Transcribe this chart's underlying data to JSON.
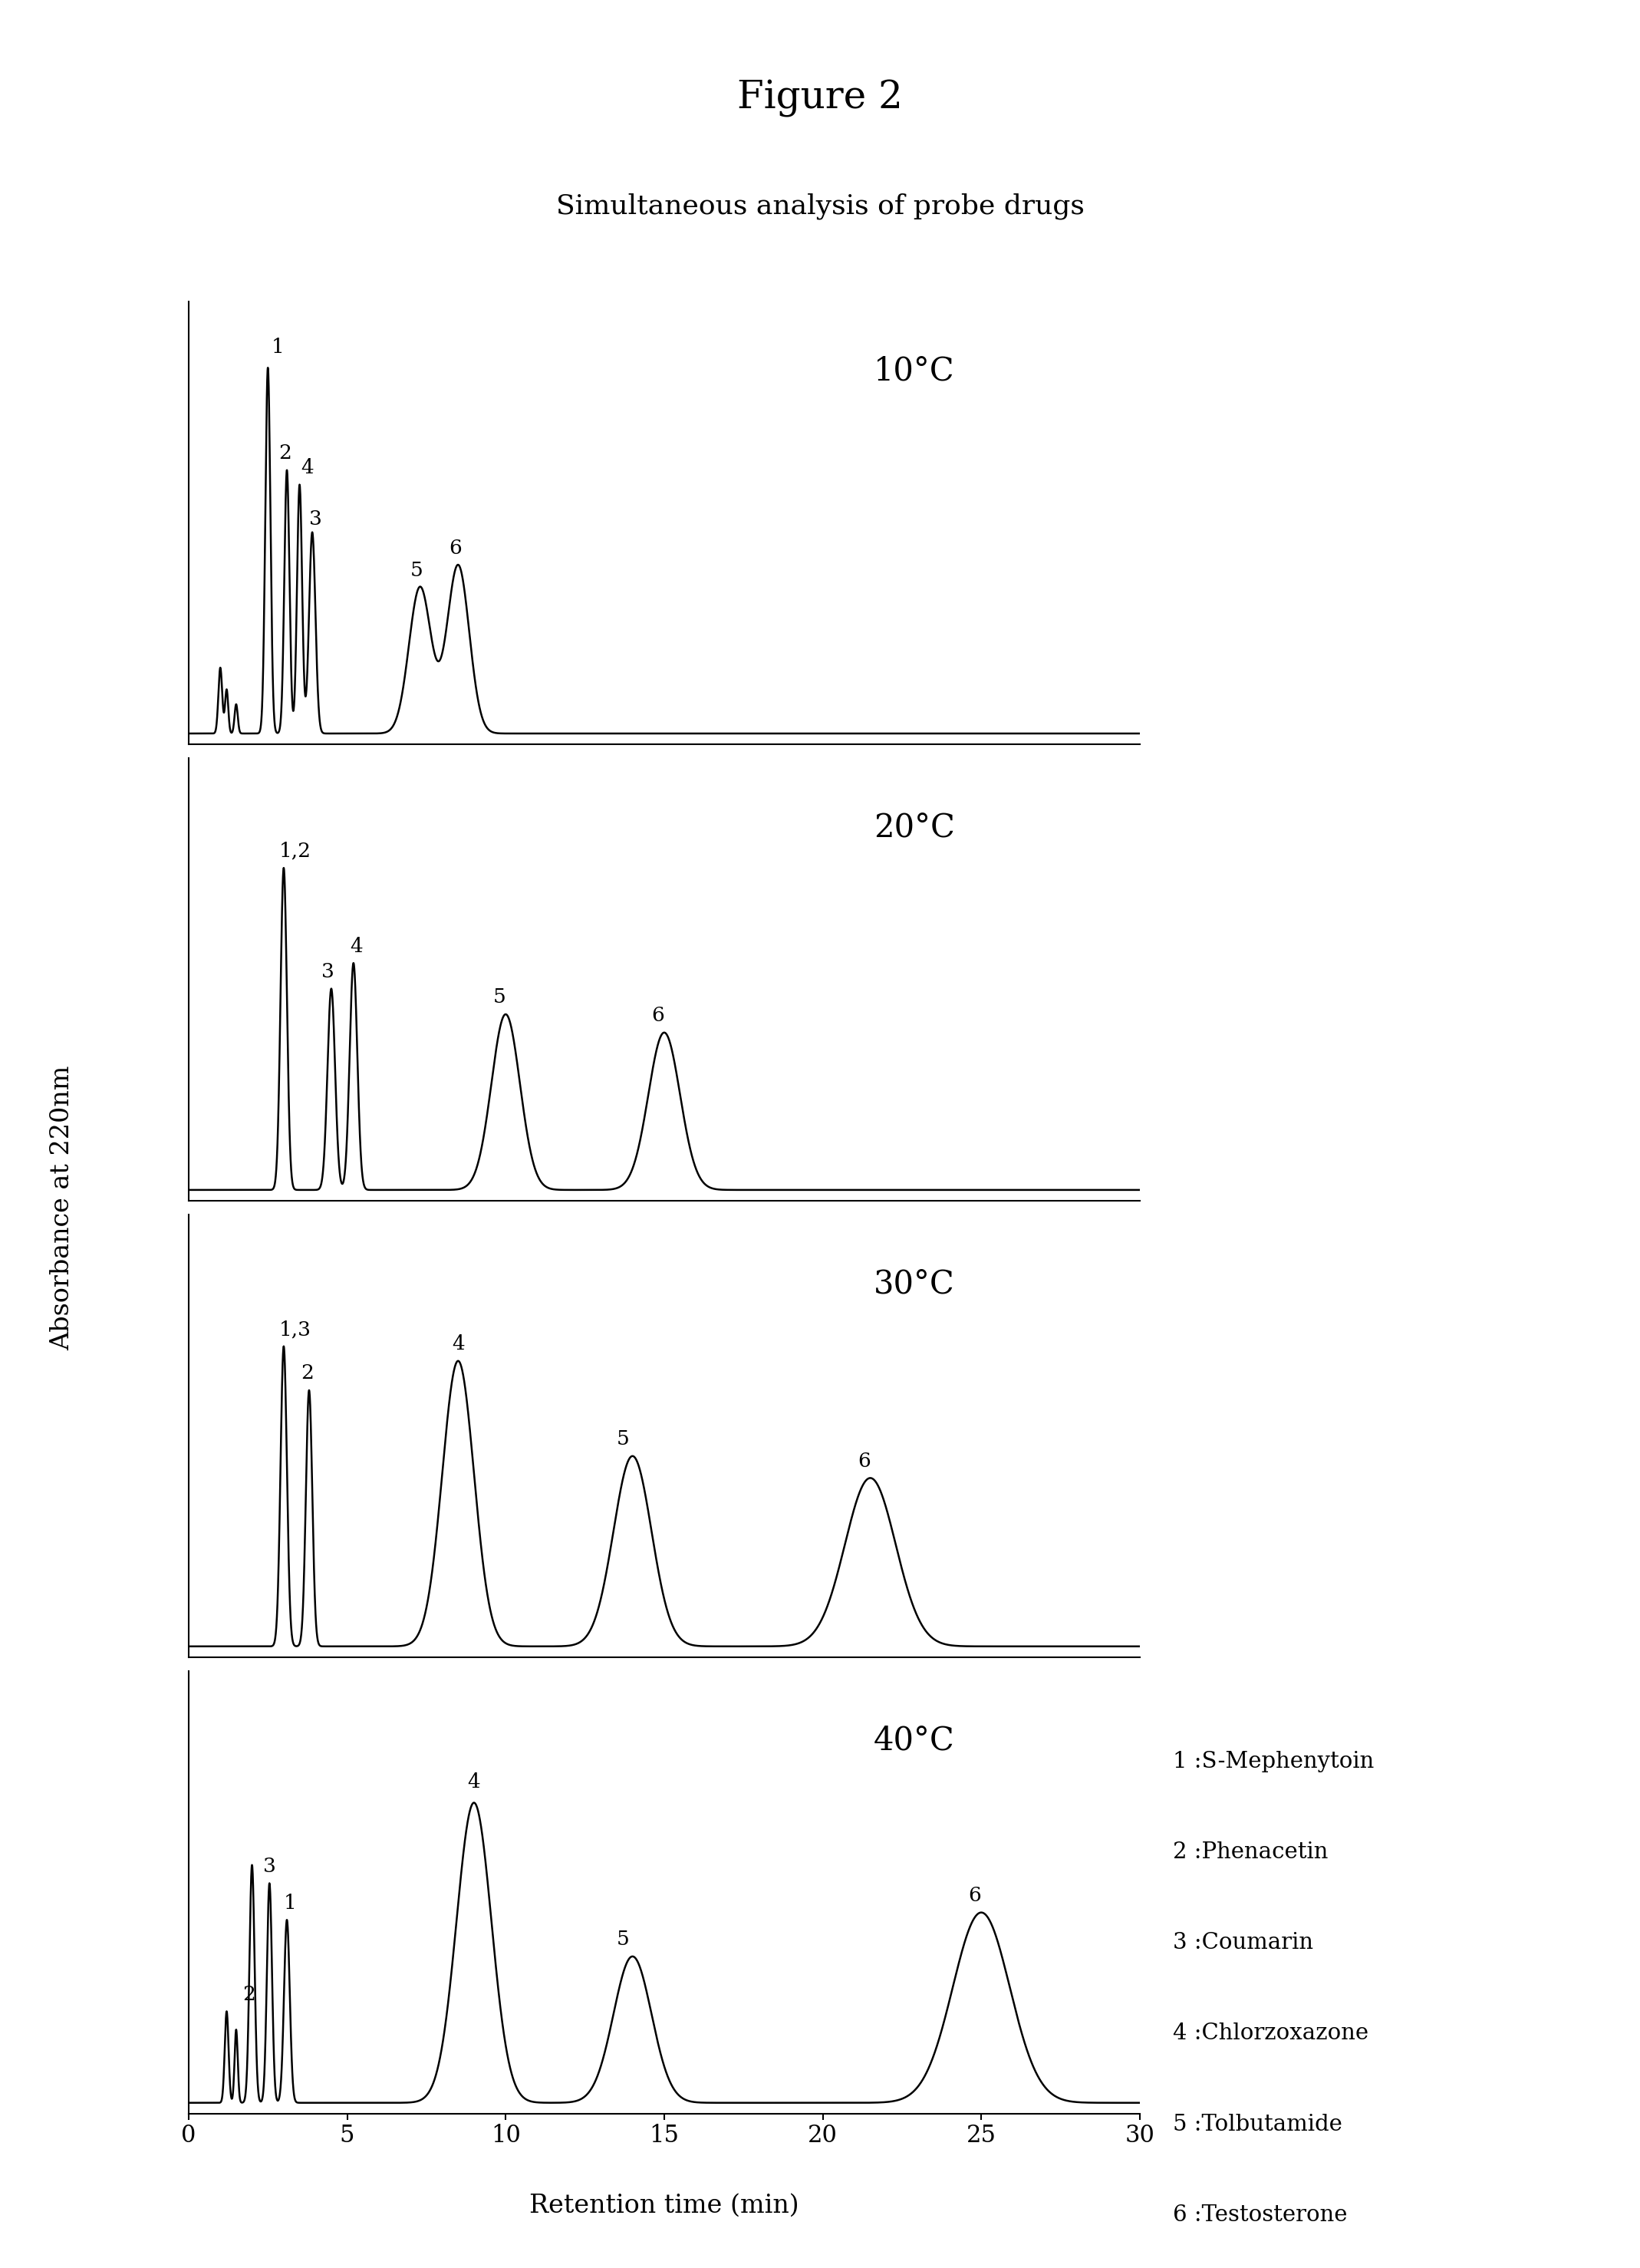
{
  "title": "Figure 2",
  "subtitle": "Simultaneous analysis of probe drugs",
  "xlabel": "Retention time (min)",
  "ylabel": "Absorbance at 220nm",
  "xlim": [
    0,
    30
  ],
  "xticks": [
    0,
    5,
    10,
    15,
    20,
    25,
    30
  ],
  "temperatures": [
    "10°C",
    "20°C",
    "30°C",
    "40°C"
  ],
  "legend": [
    "1：S-Mephenytoin",
    "2：Phenacetin",
    "3：Coumarin",
    "4：Chlorzoxazone",
    "5：Tolbutamide",
    "6：Testosterone"
  ],
  "legend_plain": [
    "1 :S-Mephenytoin",
    "2 :Phenacetin",
    "3 :Coumarin",
    "4 :Chlorzoxazone",
    "5 :Tolbutamide",
    "6 :Testosterone"
  ],
  "background_color": "#ffffff",
  "line_color": "#000000",
  "linewidth": 1.8,
  "fontsize_title": 36,
  "fontsize_subtitle": 26,
  "fontsize_axis_label": 24,
  "fontsize_tick": 22,
  "fontsize_legend": 21,
  "fontsize_temp": 30,
  "fontsize_peak_label": 19
}
